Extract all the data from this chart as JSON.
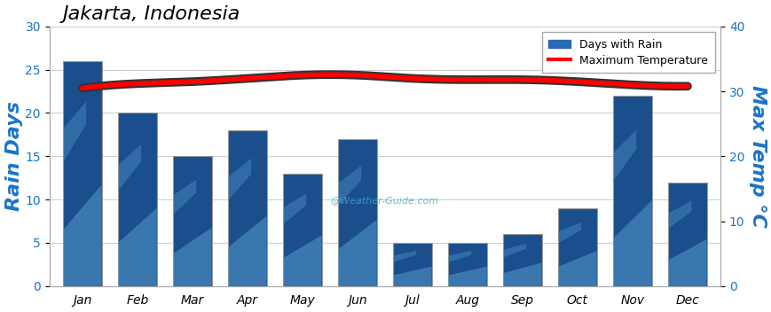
{
  "title": "Jakarta, Indonesia",
  "months": [
    "Jan",
    "Feb",
    "Mar",
    "Apr",
    "May",
    "Jun",
    "Jul",
    "Aug",
    "Sep",
    "Oct",
    "Nov",
    "Dec"
  ],
  "rain_days": [
    26,
    20,
    15,
    18,
    13,
    17,
    5,
    5,
    6,
    9,
    22,
    12
  ],
  "max_temp": [
    30.5,
    31.2,
    31.5,
    32.0,
    32.5,
    32.5,
    32.0,
    31.8,
    31.8,
    31.5,
    31.0,
    30.8
  ],
  "bar_color_dark": "#1a4e8c",
  "bar_color_mid": "#2a6ab5",
  "bar_color_light": "#5599cc",
  "bar_color_lighter": "#7bbfe0",
  "line_color": "red",
  "left_ylabel": "Rain Days",
  "right_ylabel": "Max Temp °C",
  "left_ylim": [
    0,
    30
  ],
  "right_ylim": [
    0,
    40
  ],
  "left_yticks": [
    0,
    5,
    10,
    15,
    20,
    25,
    30
  ],
  "right_yticks": [
    0,
    10,
    20,
    30,
    40
  ],
  "watermark": "@Weather-Guide.com",
  "background_color": "#ffffff",
  "legend_items": [
    "Days with Rain",
    "Maximum Temperature"
  ],
  "bar_width": 0.7
}
